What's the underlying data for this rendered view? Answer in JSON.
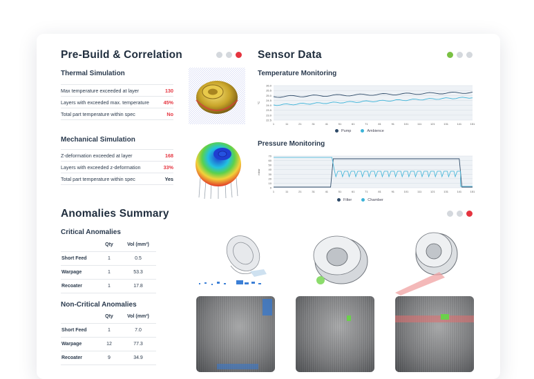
{
  "prebuild": {
    "title": "Pre-Build & Correlation",
    "thermal": {
      "title": "Thermal Simulation",
      "rows": [
        {
          "label": "Max temperature exceeded at layer",
          "value": "130"
        },
        {
          "label": "Layers with exceeded max. temperature",
          "value": "45%"
        },
        {
          "label": "Total part temperature within spec",
          "value": "No"
        }
      ]
    },
    "mechanical": {
      "title": "Mechanical Simulation",
      "rows": [
        {
          "label": "Z-deformation exceeded at layer",
          "value": "168"
        },
        {
          "label": "Layers with exceeded z-deformation",
          "value": "33%"
        },
        {
          "label": "Total part temperature within spec",
          "value": "Yes"
        }
      ]
    }
  },
  "sensor": {
    "title": "Sensor Data",
    "temperature": {
      "title": "Temperature Monitoring",
      "y_ticks": [
        "26.0",
        "25.5",
        "25.0",
        "24.5",
        "24.0",
        "23.5",
        "23.0",
        "22.5"
      ],
      "y_unit": "°C",
      "x_ticks": [
        "1",
        "11",
        "21",
        "31",
        "41",
        "51",
        "61",
        "71",
        "81",
        "91",
        "101",
        "111",
        "121",
        "131",
        "141",
        "151"
      ],
      "legend": [
        "Pump",
        "Ambience"
      ]
    },
    "pressure": {
      "title": "Pressure Monitoring",
      "y_ticks": [
        "70",
        "60",
        "50",
        "40",
        "30",
        "20",
        "10",
        "0"
      ],
      "y_unit": "mbar",
      "x_ticks": [
        "1",
        "11",
        "21",
        "31",
        "41",
        "51",
        "61",
        "71",
        "81",
        "91",
        "101",
        "111",
        "121",
        "131",
        "141",
        "151"
      ],
      "legend": [
        "Filter",
        "Chamber"
      ]
    }
  },
  "anomalies": {
    "title": "Anomalies Summary",
    "critical": {
      "title": "Critical Anomalies",
      "headers": [
        "Qty",
        "Vol (mm³)"
      ],
      "rows": [
        {
          "name": "Short Feed",
          "qty": "1",
          "vol": "0.5"
        },
        {
          "name": "Warpage",
          "qty": "1",
          "vol": "53.3"
        },
        {
          "name": "Recoater",
          "qty": "1",
          "vol": "17.8"
        }
      ]
    },
    "noncritical": {
      "title": "Non-Critical Anomalies",
      "headers": [
        "Qty",
        "Vol (mm³)"
      ],
      "rows": [
        {
          "name": "Short Feed",
          "qty": "1",
          "vol": "7.0"
        },
        {
          "name": "Warpage",
          "qty": "12",
          "vol": "77.3"
        },
        {
          "name": "Recoater",
          "qty": "9",
          "vol": "34.9"
        }
      ]
    }
  },
  "colors": {
    "accent_red": "#e5343f",
    "accent_green": "#7ac143",
    "pump": "#2e4a68",
    "ambience": "#3bb3d8"
  }
}
